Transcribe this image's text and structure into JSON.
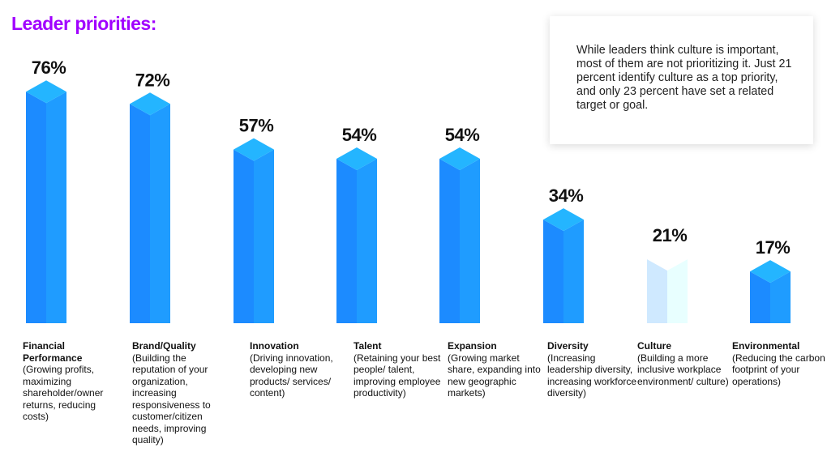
{
  "chart_data": {
    "type": "bar3d",
    "title": "Leader priorities:",
    "annotation": "While leaders think culture is important, most of them are not prioritizing it. Just 21 percent identify culture as a top priority, and only 23 percent have set a related target or goal.",
    "categories": [
      "Financial Performance",
      "Brand/Quality",
      "Innovation",
      "Talent",
      "Expansion",
      "Diversity",
      "Culture",
      "Environmental"
    ],
    "descriptions": [
      "(Growing profits, maximizing shareholder/owner returns, reducing costs)",
      "(Building the reputation of your organization, increasing responsiveness to customer/citizen needs, improving quality)",
      "(Driving innovation, developing new products/ services/ content)",
      "(Retaining your best people/ talent, improving employee productivity)",
      "(Growing market share, expanding into new geographic markets)",
      "(Increasing leadership diversity, increasing workforce diversity)",
      "(Building a more inclusive workplace environment/ culture)",
      "(Reducing the carbon footprint of your operations)"
    ],
    "values": [
      76,
      72,
      57,
      54,
      54,
      34,
      21,
      17
    ],
    "value_labels": [
      "76%",
      "72%",
      "57%",
      "54%",
      "54%",
      "34%",
      "21%",
      "17%"
    ],
    "colors": [
      "#1c8bff",
      "#1c8bff",
      "#1c8bff",
      "#1c8bff",
      "#1c8bff",
      "#1c8bff",
      "#cfe9ff",
      "#1c8bff"
    ]
  }
}
